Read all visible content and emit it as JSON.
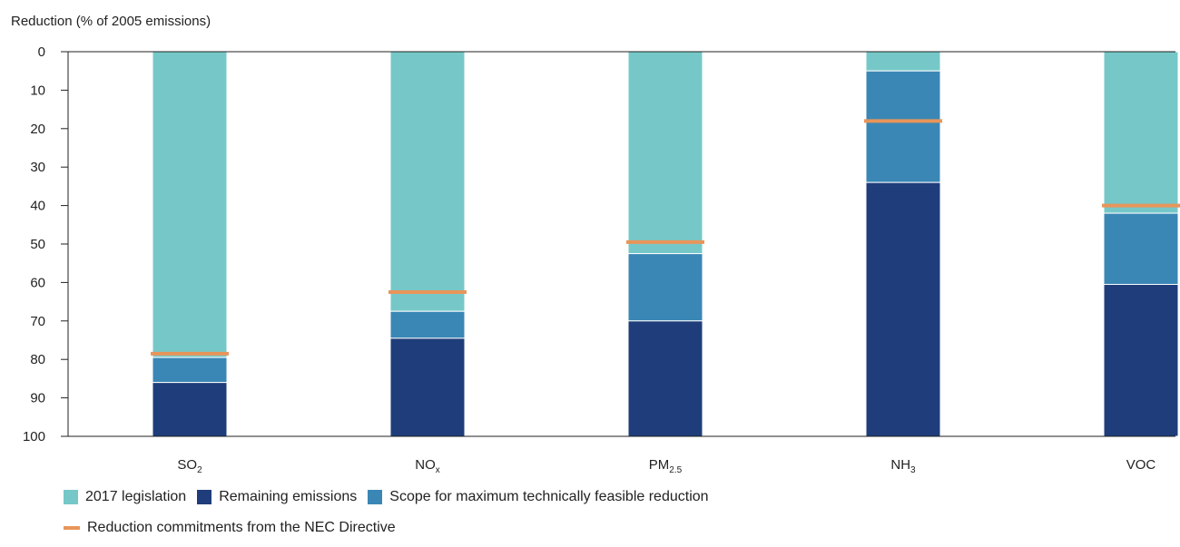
{
  "chart_data": {
    "type": "bar",
    "stacked": true,
    "ylabel": "Reduction (% of 2005 emissions)",
    "ylim": [
      0,
      100
    ],
    "y_inverted": true,
    "yticks": [
      0,
      10,
      20,
      30,
      40,
      50,
      60,
      70,
      80,
      90,
      100
    ],
    "categories": [
      {
        "base": "SO",
        "sub": "2"
      },
      {
        "base": "NO",
        "sub": "x"
      },
      {
        "base": "PM",
        "sub": "2.5"
      },
      {
        "base": "NH",
        "sub": "3"
      },
      {
        "base": "VOC",
        "sub": ""
      }
    ],
    "series": [
      {
        "name": "2017 legislation",
        "color": "#76c8c8",
        "values": [
          79.5,
          67.5,
          52.5,
          5,
          42
        ]
      },
      {
        "name": "Scope for maximum technically feasible reduction",
        "color": "#3a87b5",
        "values": [
          6.5,
          7,
          17.5,
          29,
          18.5
        ]
      },
      {
        "name": "Remaining emissions",
        "color": "#1f3d7a",
        "values": [
          14,
          25.5,
          30,
          66,
          39.5
        ]
      }
    ],
    "commitments": {
      "name": "Reduction commitments from the NEC Directive",
      "color": "#e8955a",
      "values": [
        78.5,
        62.5,
        49.5,
        18,
        40
      ]
    },
    "legend": {
      "row1": [
        {
          "label": "2017 legislation",
          "color": "#76c8c8"
        },
        {
          "label": "Remaining emissions",
          "color": "#1f3d7a"
        },
        {
          "label": "Scope for maximum technically feasible reduction",
          "color": "#3a87b5"
        }
      ],
      "row2": {
        "label": "Reduction commitments from the NEC Directive",
        "color": "#e8955a"
      }
    }
  }
}
